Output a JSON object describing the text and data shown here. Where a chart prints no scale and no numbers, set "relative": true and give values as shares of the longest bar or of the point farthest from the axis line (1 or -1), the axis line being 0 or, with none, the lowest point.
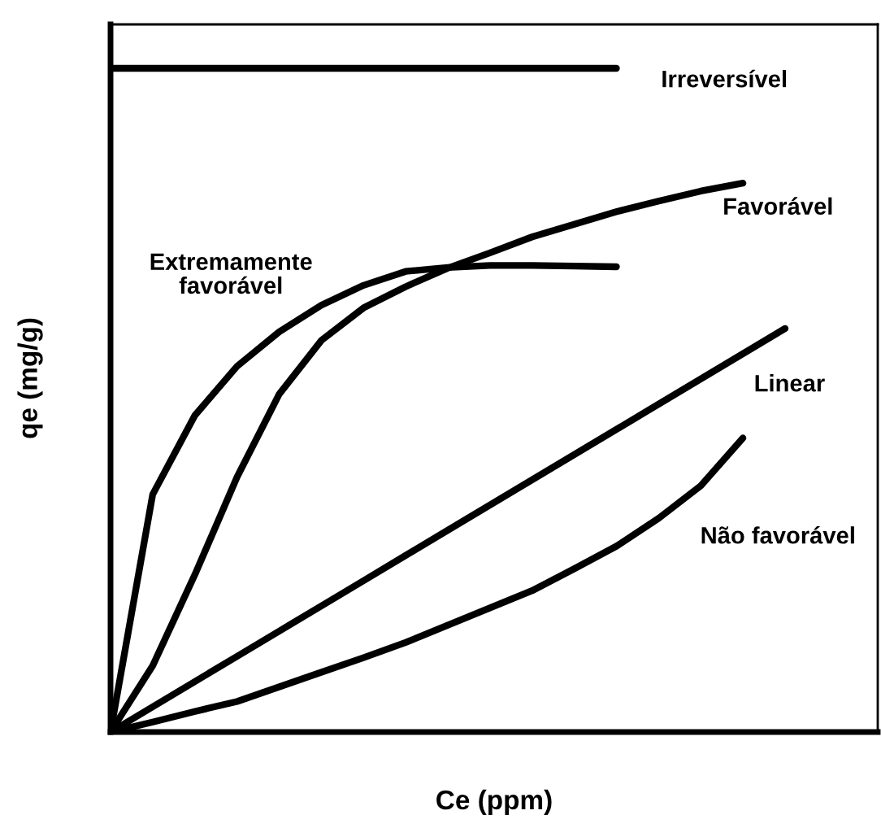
{
  "chart_data": {
    "type": "line",
    "relative": true,
    "xlabel": "Ce (ppm)",
    "ylabel": "qe (mg/g)",
    "legend": false,
    "marker": "none",
    "line_style": "solid",
    "categories": [
      null,
      null,
      null,
      null,
      null,
      null,
      null,
      null,
      null,
      null,
      null,
      null,
      null,
      null,
      null,
      null,
      null
    ],
    "series": [
      {
        "name": "Irreversível",
        "color": "#000000",
        "values": [
          1,
          1,
          1,
          1,
          1,
          1,
          1,
          1,
          1,
          1,
          1,
          1,
          1,
          null,
          null,
          null,
          null
        ]
      },
      {
        "name": "Favorável",
        "color": "#000000",
        "values": [
          0,
          0.1,
          0.237,
          0.384,
          0.509,
          0.59,
          0.639,
          0.671,
          0.699,
          0.722,
          0.746,
          0.765,
          0.784,
          0.8,
          0.815,
          0.827,
          null
        ]
      },
      {
        "name": "Extremamente\nfavorável",
        "color": "#000000",
        "values": [
          0,
          0.358,
          0.477,
          0.551,
          0.603,
          0.643,
          0.673,
          0.694,
          0.7,
          0.703,
          0.703,
          0.702,
          0.701,
          null,
          null,
          null,
          null
        ]
      },
      {
        "name": "Linear",
        "color": "#000000",
        "values": [
          0,
          0.038,
          0.076,
          0.114,
          0.152,
          0.19,
          0.228,
          0.266,
          0.304,
          0.342,
          0.38,
          0.418,
          0.456,
          0.494,
          0.532,
          0.57,
          0.608
        ]
      },
      {
        "name": "Não favorável",
        "color": "#000000",
        "values": [
          0,
          0.015,
          0.031,
          0.046,
          0.068,
          0.09,
          0.112,
          0.135,
          0.161,
          0.187,
          0.213,
          0.246,
          0.28,
          0.322,
          0.371,
          0.443,
          null
        ]
      }
    ]
  }
}
